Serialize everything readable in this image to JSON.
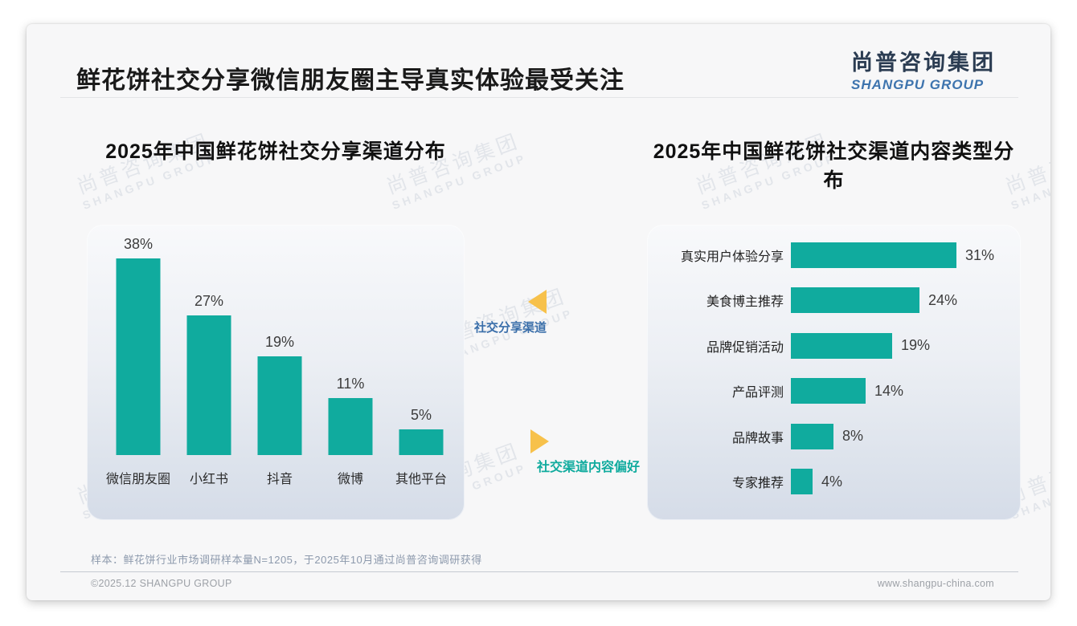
{
  "header": {
    "title": "鲜花饼社交分享微信朋友圈主导真实体验最受关注",
    "logo_cn": "尚普咨询集团",
    "logo_en": "SHANGPU GROUP"
  },
  "watermark": {
    "line1": "尚普咨询集团",
    "line2": "SHANGPU GROUP"
  },
  "colors": {
    "bar": "#10ab9e",
    "triangle": "#f7c14b",
    "annotation_blue": "#3b6faa",
    "annotation_teal": "#10ab9e",
    "logo_navy": "#2b3c52",
    "logo_blue": "#3e74ae"
  },
  "chart_data": [
    {
      "type": "bar",
      "orientation": "vertical",
      "title": "2025年中国鲜花饼社交分享渠道分布",
      "categories": [
        "微信朋友圈",
        "小红书",
        "抖音",
        "微博",
        "其他平台"
      ],
      "values": [
        38,
        27,
        19,
        11,
        5
      ],
      "unit": "%",
      "ylim": [
        0,
        40
      ],
      "grid": false,
      "data_labels": "above-bars"
    },
    {
      "type": "bar",
      "orientation": "horizontal",
      "title": "2025年中国鲜花饼社交渠道内容类型分布",
      "categories": [
        "真实用户体验分享",
        "美食博主推荐",
        "品牌促销活动",
        "产品评测",
        "品牌故事",
        "专家推荐"
      ],
      "values": [
        31,
        24,
        19,
        14,
        8,
        4
      ],
      "unit": "%",
      "xlim": [
        0,
        35
      ],
      "grid": false,
      "data_labels": "right-of-bars"
    }
  ],
  "annotations": [
    {
      "label": "社交分享渠道",
      "direction": "left",
      "color": "#3b6faa"
    },
    {
      "label": "社交渠道内容偏好",
      "direction": "right",
      "color": "#10ab9e"
    }
  ],
  "note": {
    "text": "样本：鲜花饼行业市场调研样本量N=1205，于2025年10月通过尚普咨询调研获得"
  },
  "footer": {
    "left": "©2025.12 SHANGPU GROUP",
    "right": "www.shangpu-china.com"
  }
}
